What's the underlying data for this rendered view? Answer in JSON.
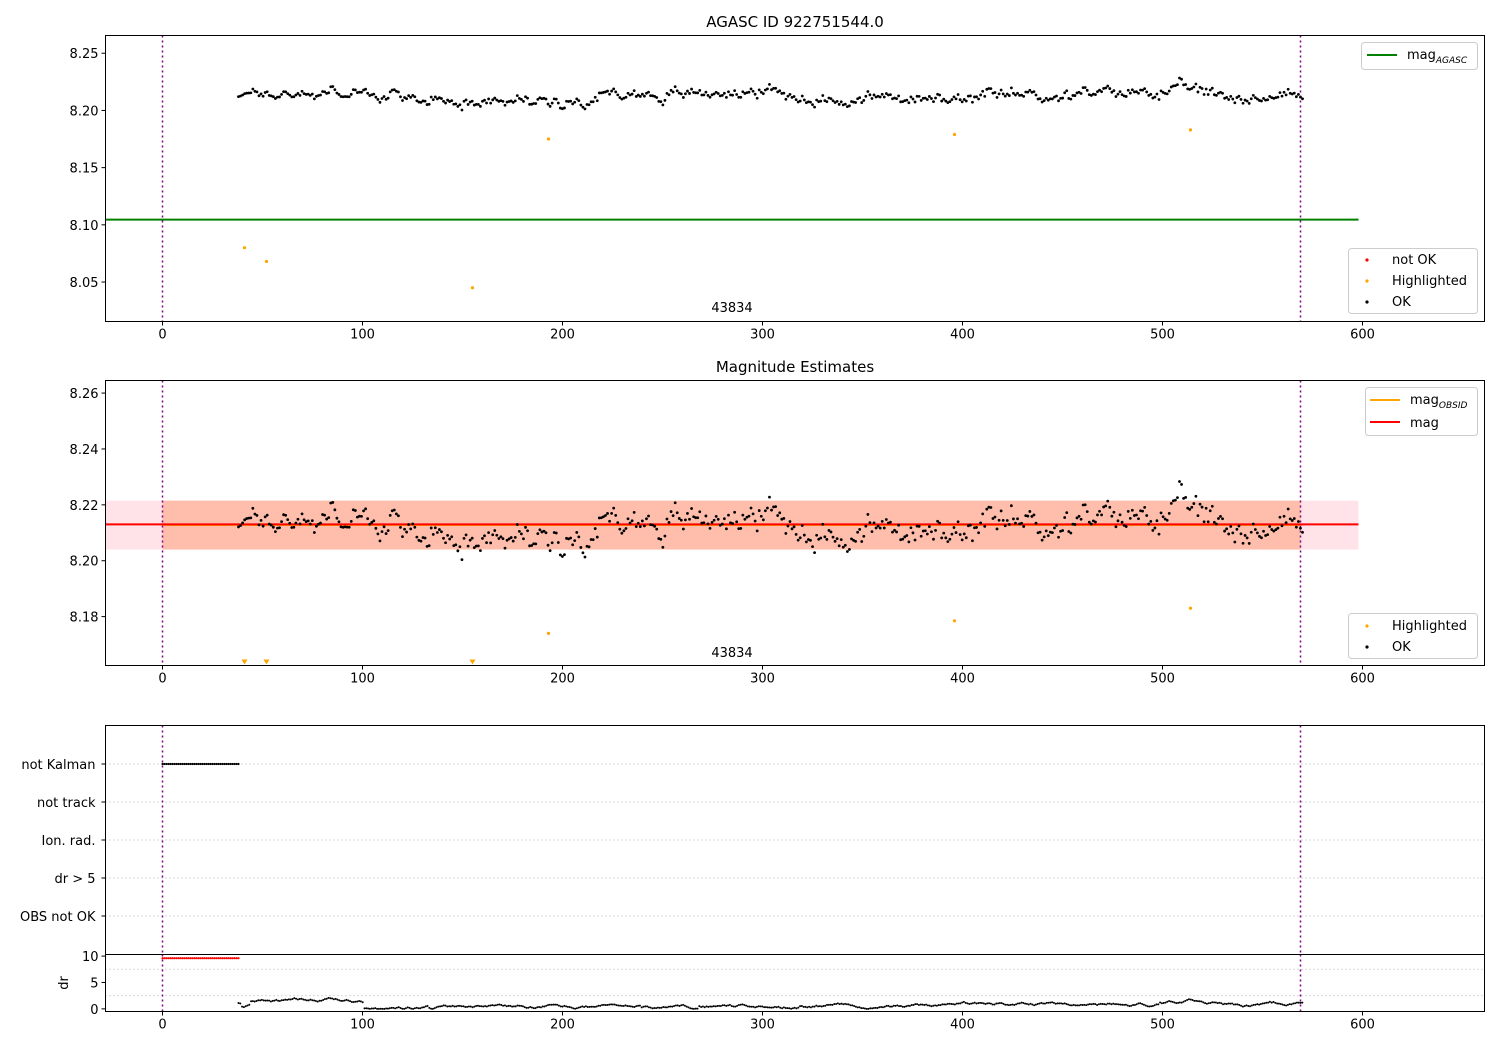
{
  "chart_data": [
    {
      "type": "scatter",
      "title": "AGASC ID 922751544.0",
      "xlabel": "",
      "ylabel": "",
      "xlim": [
        -28.5,
        661
      ],
      "ylim": [
        8.0155,
        8.2655
      ],
      "xticks": [
        0,
        100,
        200,
        300,
        400,
        500,
        600
      ],
      "yticks": [
        8.05,
        8.1,
        8.15,
        8.2,
        8.25
      ],
      "ytick_labels": [
        "8.05",
        "8.10",
        "8.15",
        "8.20",
        "8.25"
      ],
      "vlines": [
        0,
        569
      ],
      "annotation": {
        "text": "43834",
        "x": 285,
        "y": 8.0225
      },
      "lines": [
        {
          "name": "mag",
          "subscript": "AGASC",
          "y": 8.1045,
          "x_range": [
            -28.5,
            598
          ],
          "color": "#008000"
        }
      ],
      "legend_upper": {
        "loc": "upper right",
        "entries": [
          {
            "label": "mag",
            "subscript": "AGASC",
            "color": "#008000",
            "marker": "line"
          }
        ]
      },
      "legend_lower": {
        "loc": "lower right",
        "entries": [
          {
            "label": "not OK",
            "color": "#ff0000",
            "marker": "dot"
          },
          {
            "label": "Highlighted",
            "color": "#ffa500",
            "marker": "dot"
          },
          {
            "label": "OK",
            "color": "#000000",
            "marker": "dot"
          }
        ]
      },
      "series": [
        {
          "name": "OK",
          "color": "#000000",
          "x_range": [
            38,
            570
          ],
          "mean": 8.2125,
          "n": 520
        },
        {
          "name": "Highlighted",
          "color": "#ffa500",
          "points": [
            [
              41,
              8.08
            ],
            [
              52,
              8.068
            ],
            [
              155,
              8.045
            ],
            [
              193,
              8.175
            ],
            [
              396,
              8.179
            ],
            [
              514,
              8.183
            ]
          ]
        }
      ]
    },
    {
      "type": "scatter",
      "title": "Magnitude Estimates",
      "xlabel": "",
      "ylabel": "",
      "xlim": [
        -28.5,
        661
      ],
      "ylim": [
        8.1625,
        8.2645
      ],
      "xticks": [
        0,
        100,
        200,
        300,
        400,
        500,
        600
      ],
      "yticks": [
        8.18,
        8.2,
        8.22,
        8.24,
        8.26
      ],
      "ytick_labels": [
        "8.18",
        "8.20",
        "8.22",
        "8.24",
        "8.26"
      ],
      "vlines": [
        0,
        569
      ],
      "annotation": {
        "text": "43834",
        "x": 285,
        "y": 8.1648
      },
      "lines": [
        {
          "name": "mag",
          "subscript": "OBSID",
          "y": 8.2128,
          "x_range": [
            0,
            569
          ],
          "color": "#ffa500"
        },
        {
          "name": "mag",
          "y": 8.213,
          "x_range": [
            -28.5,
            598
          ],
          "color": "#ff0000"
        }
      ],
      "bands": [
        {
          "y_range": [
            8.204,
            8.2215
          ],
          "x_range": [
            -28.5,
            598
          ],
          "color": "#ffc0cb"
        },
        {
          "y_range": [
            8.204,
            8.2215
          ],
          "x_range": [
            0,
            569
          ],
          "color": "#ffa07a"
        }
      ],
      "legend_upper": {
        "loc": "upper right",
        "entries": [
          {
            "label": "mag",
            "subscript": "OBSID",
            "color": "#ffa500",
            "marker": "line"
          },
          {
            "label": "mag",
            "color": "#ff0000",
            "marker": "line"
          }
        ]
      },
      "legend_lower": {
        "loc": "lower right",
        "entries": [
          {
            "label": "Highlighted",
            "color": "#ffa500",
            "marker": "dot"
          },
          {
            "label": "OK",
            "color": "#000000",
            "marker": "dot"
          }
        ]
      },
      "series": [
        {
          "name": "OK",
          "color": "#000000",
          "x_range": [
            38,
            570
          ],
          "mean": 8.2125,
          "n": 520
        },
        {
          "name": "Highlighted",
          "color": "#ffa500",
          "points": [
            [
              193,
              8.174
            ],
            [
              396,
              8.1785
            ],
            [
              514,
              8.183
            ]
          ]
        },
        {
          "name": "Highlighted (below range)",
          "color": "#ffa500",
          "marker": "triangle-down",
          "x": [
            41,
            52,
            155
          ]
        }
      ]
    },
    {
      "type": "scatter",
      "title": "",
      "xlim": [
        -28.5,
        661
      ],
      "vlines": [
        0,
        569
      ],
      "categories": [
        "not Kalman",
        "not track",
        "Ion. rad.",
        "dr > 5",
        "OBS not OK"
      ],
      "flag_series": [
        {
          "category": "not Kalman",
          "x_range": [
            0,
            38
          ],
          "color": "#000000"
        }
      ]
    },
    {
      "type": "line",
      "title": "",
      "xlabel": "",
      "ylabel": "dr",
      "xlim": [
        -28.5,
        661
      ],
      "ylim": [
        -0.5,
        10.3
      ],
      "xticks": [
        0,
        100,
        200,
        300,
        400,
        500,
        600
      ],
      "yticks": [
        0,
        5,
        10
      ],
      "ytick_labels": [
        "0",
        "5",
        "10"
      ],
      "vlines": [
        0,
        569
      ],
      "series": [
        {
          "name": "dr > 5 (clipped)",
          "color": "#ff0000",
          "x_range": [
            0,
            38
          ],
          "y": 9.6
        },
        {
          "name": "dr",
          "color": "#000000",
          "x_range": [
            38,
            570
          ],
          "typical_range": [
            0.0,
            2.5
          ]
        }
      ]
    }
  ]
}
